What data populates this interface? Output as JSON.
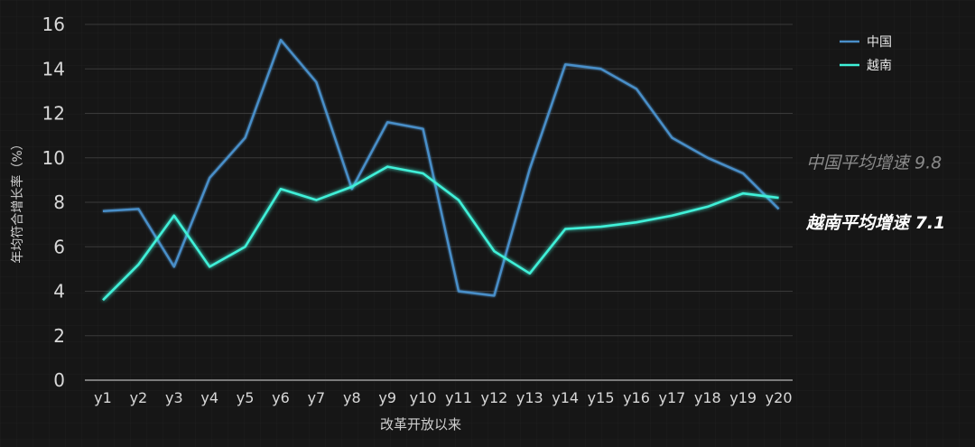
{
  "chart_data": {
    "type": "line",
    "xlabel": "改革开放以来",
    "ylabel": "年均符合增长率（%）",
    "ylim": [
      0,
      16
    ],
    "yticks": [
      0,
      2,
      4,
      6,
      8,
      10,
      12,
      14,
      16
    ],
    "grid": true,
    "legend_position": "top-right",
    "x": [
      "y1",
      "y2",
      "y3",
      "y4",
      "y5",
      "y6",
      "y7",
      "y8",
      "y9",
      "y10",
      "y11",
      "y12",
      "y13",
      "y14",
      "y15",
      "y16",
      "y17",
      "y18",
      "y19",
      "y20"
    ],
    "series": [
      {
        "name": "中国",
        "color": "#4a8fc9",
        "values": [
          7.6,
          7.7,
          5.1,
          9.1,
          10.9,
          15.3,
          13.4,
          8.6,
          11.6,
          11.3,
          4.0,
          3.8,
          9.5,
          14.2,
          14.0,
          13.1,
          10.9,
          10.0,
          9.3,
          7.7
        ]
      },
      {
        "name": "越南",
        "color": "#3ff0d8",
        "values": [
          3.6,
          5.2,
          7.4,
          5.1,
          6.0,
          8.6,
          8.1,
          8.7,
          9.6,
          9.3,
          8.1,
          5.8,
          4.8,
          6.8,
          6.9,
          7.1,
          7.4,
          7.8,
          8.4,
          8.2
        ]
      }
    ],
    "reference_lines": [
      {
        "label": "中国平均增速 9.8",
        "value": 9.8,
        "color": "#c98a3a",
        "text_color": "#8a8a8a"
      },
      {
        "label": "越南平均增速 7.1",
        "value": 7.1,
        "color": "#e07ab8",
        "text_color": "#ffffff"
      }
    ]
  }
}
